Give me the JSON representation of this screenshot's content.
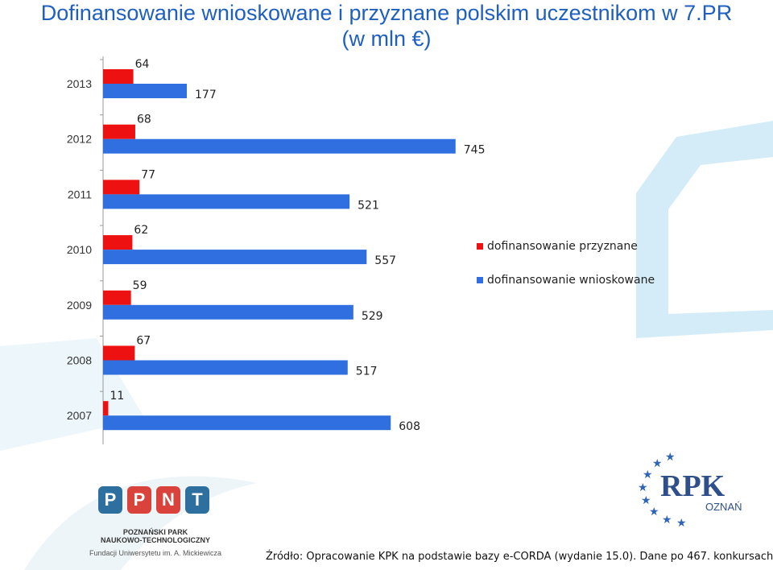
{
  "title_line1": "Dofinansowanie wnioskowane i przyznane polskim uczestnikom w 7.PR",
  "title_line2": "(w mln €)",
  "colors": {
    "title": "#1f5fbf",
    "przyznane": "#ee1111",
    "wnioskowane": "#2f6fe0",
    "decor": "#cfeaf6"
  },
  "chart_data": {
    "type": "bar",
    "orientation": "horizontal",
    "categories": [
      "2013",
      "2012",
      "2011",
      "2010",
      "2009",
      "2008",
      "2007"
    ],
    "series": [
      {
        "name": "dofinansowanie przyznane",
        "values": [
          64,
          68,
          77,
          62,
          59,
          67,
          11
        ]
      },
      {
        "name": "dofinansowanie wnioskowane",
        "values": [
          177,
          745,
          521,
          557,
          529,
          517,
          608
        ]
      }
    ],
    "legend_position": "right",
    "grid": false
  },
  "logo_ppnt": {
    "tiles": [
      "P",
      "P",
      "N",
      "T"
    ],
    "line1": "POZNAŃSKI PARK",
    "line2": "NAUKOWO-TECHNOLOGICZNY",
    "line3": "Fundacji Uniwersytetu im. A. Mickiewicza"
  },
  "logo_rpk": {
    "letters": "RPK",
    "sub": "OZNAŃ"
  },
  "source_text": "Źródło: Opracowanie KPK na podstawie bazy e-CORDA (wydanie 15.0). Dane po 467. konkursach."
}
